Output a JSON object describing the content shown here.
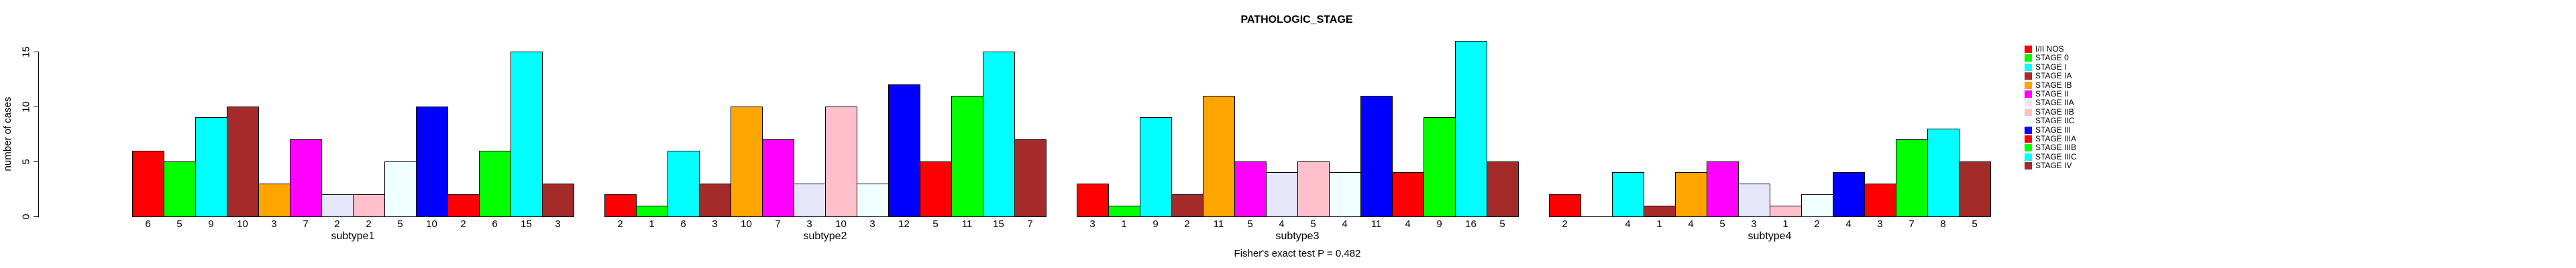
{
  "title": "PATHOLOGIC_STAGE",
  "y_axis": {
    "label": "number of cases",
    "ticks": [
      0,
      5,
      10,
      15
    ]
  },
  "footer": "Fisher's exact test P = 0.482",
  "chart_data": {
    "type": "bar",
    "title": "PATHOLOGIC_STAGE",
    "ylabel": "number of cases",
    "xlabel": "",
    "ylim": [
      0,
      15
    ],
    "y_ticks": [
      0,
      5,
      10,
      15
    ],
    "grid": false,
    "legend_position": "right-of-plot",
    "bar_labels": "each bar's count printed beneath it; zero-count bars drawn as a gap with no label",
    "stages": [
      "I/II NOS",
      "STAGE 0",
      "STAGE I",
      "STAGE IA",
      "STAGE IB",
      "STAGE II",
      "STAGE IIA",
      "STAGE IIB",
      "STAGE IIC",
      "STAGE III",
      "STAGE IIIA",
      "STAGE IIIB",
      "STAGE IIIC",
      "STAGE IV"
    ],
    "colors": [
      "#FF0000",
      "#00FF00",
      "#00FFFF",
      "#A52A2A",
      "#FFA500",
      "#FF00FF",
      "#E6E6FA",
      "#FFC0CB",
      "#F0FFFF",
      "#0000FF",
      "#FF0000",
      "#00FF00",
      "#00FFFF",
      "#A52A2A"
    ],
    "categories": [
      "subtype1",
      "subtype2",
      "subtype3",
      "subtype4"
    ],
    "groups": [
      {
        "label": "subtype1",
        "values": [
          6,
          5,
          9,
          10,
          3,
          7,
          2,
          2,
          5,
          10,
          2,
          6,
          15,
          3
        ]
      },
      {
        "label": "subtype2",
        "values": [
          2,
          1,
          6,
          3,
          10,
          7,
          3,
          10,
          3,
          12,
          5,
          11,
          15,
          7
        ]
      },
      {
        "label": "subtype3",
        "values": [
          3,
          1,
          9,
          2,
          11,
          5,
          4,
          5,
          4,
          11,
          4,
          9,
          16,
          5
        ]
      },
      {
        "label": "subtype4",
        "values": [
          2,
          0,
          4,
          1,
          4,
          5,
          3,
          1,
          2,
          4,
          3,
          7,
          8,
          5
        ]
      }
    ],
    "annotation": "Fisher's exact test P = 0.482"
  }
}
